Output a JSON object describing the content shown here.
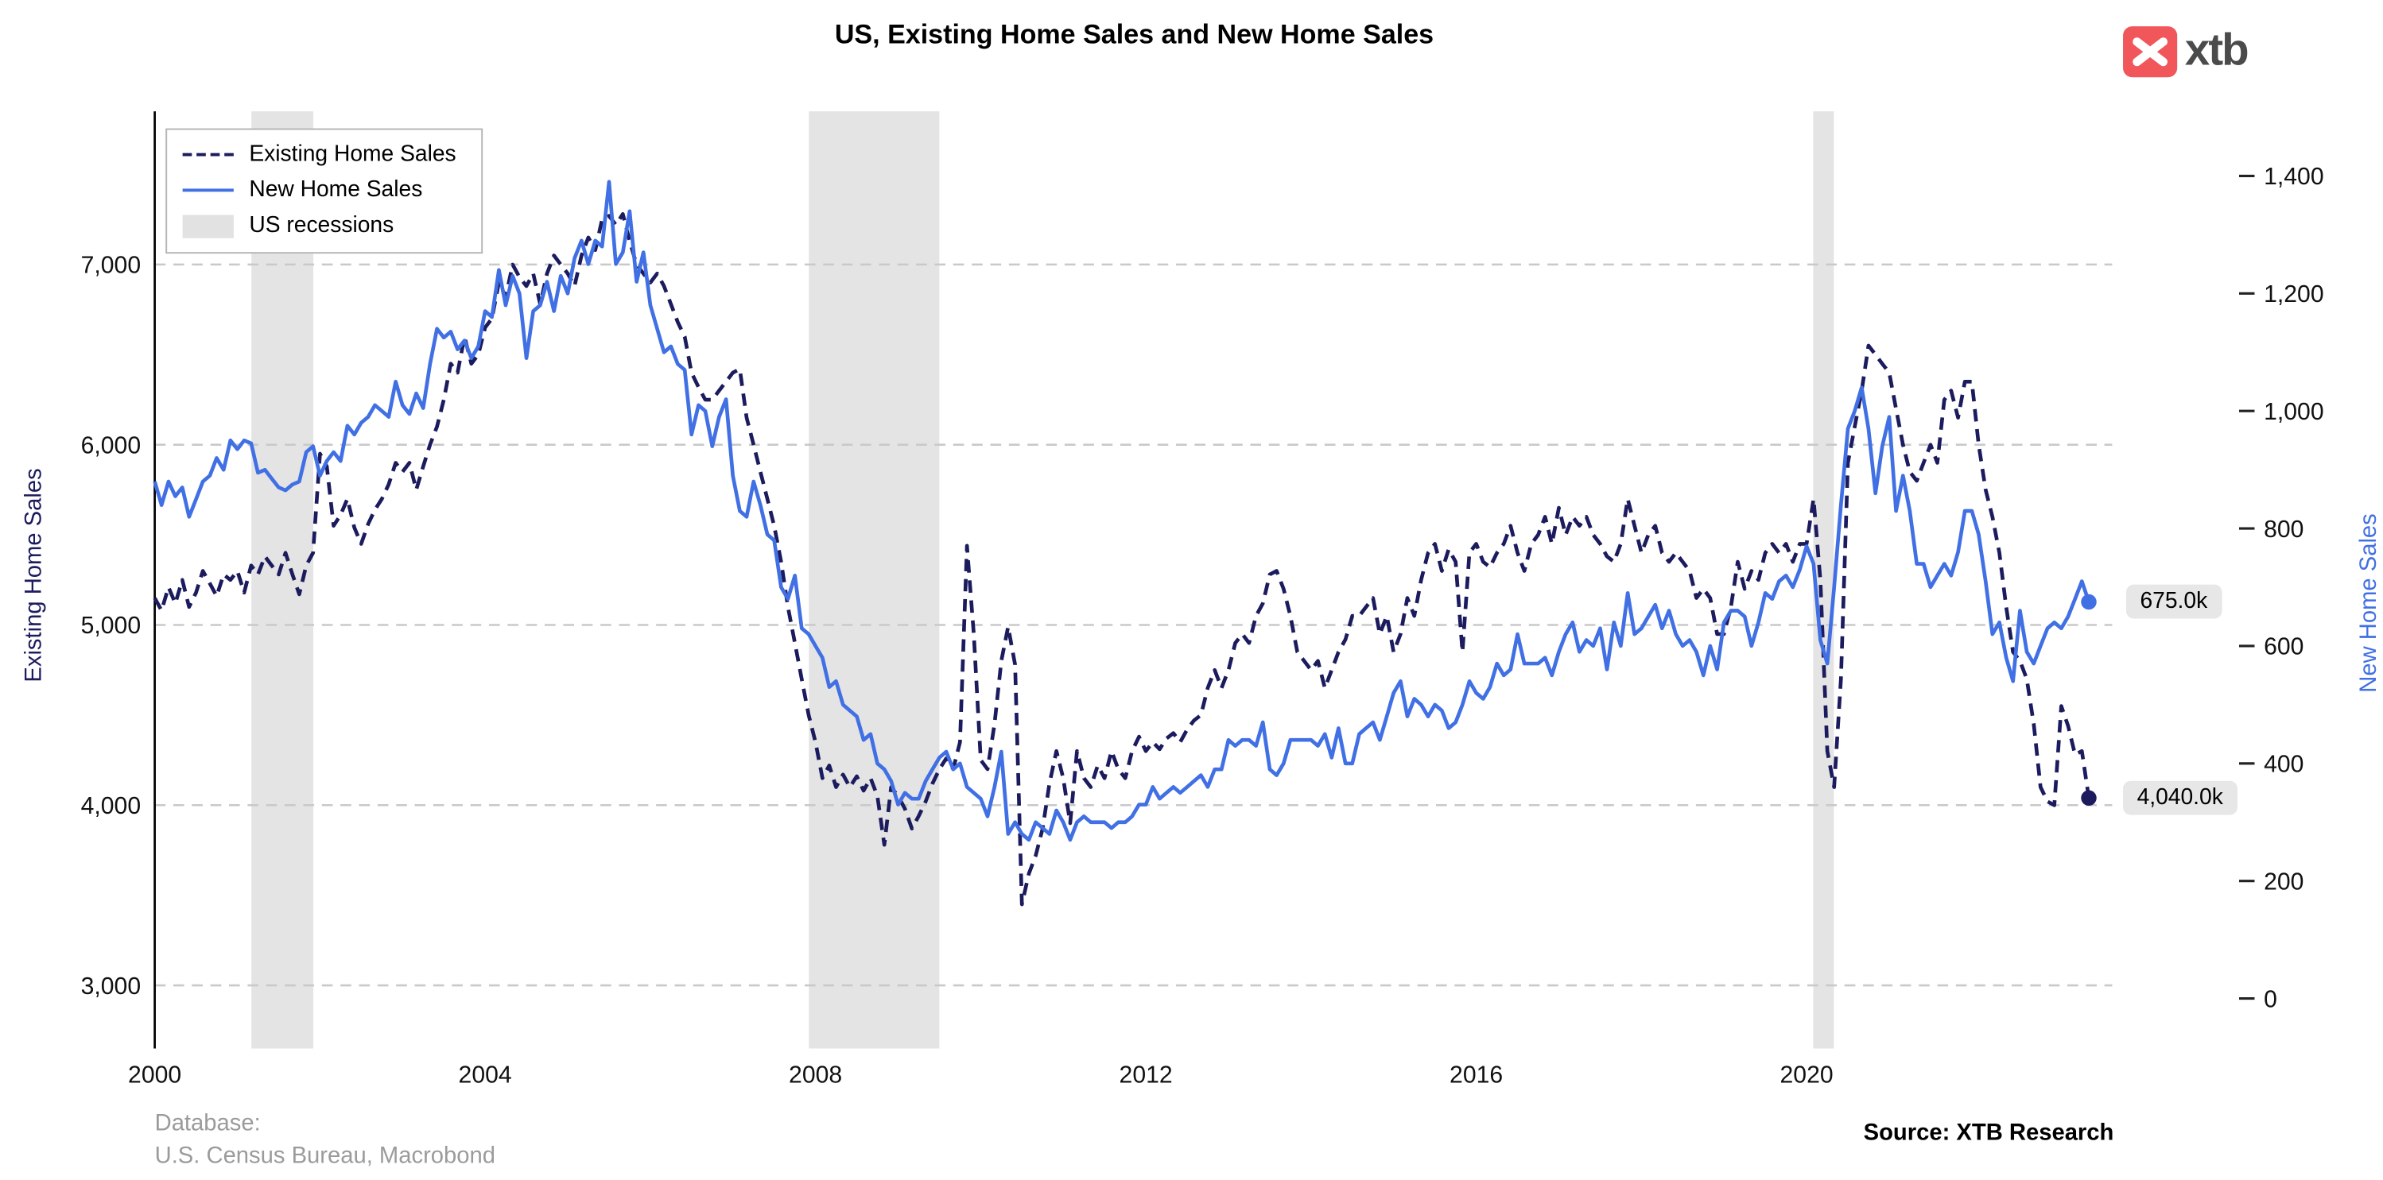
{
  "title": "US, Existing Home Sales and New Home Sales",
  "logo": {
    "text": "xtb"
  },
  "legend": [
    {
      "label": "Existing Home Sales"
    },
    {
      "label": "New Home Sales"
    },
    {
      "label": "US recessions"
    }
  ],
  "left_axis": {
    "label": "Existing Home Sales",
    "color": "#1b1b5e"
  },
  "right_axis": {
    "label": "New Home Sales",
    "color": "#4170e4"
  },
  "end_labels": {
    "new_home_sales": "675.0k",
    "existing_home_sales": "4,040.0k"
  },
  "footer": {
    "database_label": "Database:",
    "database_value": "U.S. Census Bureau, Macrobond",
    "source": "Source: XTB Research"
  },
  "chart_data": {
    "type": "line",
    "title": "US, Existing Home Sales and New Home Sales",
    "x_start": 2000.0,
    "x_step_years": 0.0833333,
    "x_range": [
      2000,
      2023.7
    ],
    "left_ylim": [
      2650,
      7850
    ],
    "right_ylim": [
      -85,
      1510
    ],
    "grid": "horizontal-dashed",
    "legend_position": "top-left",
    "x_ticks": {
      "values": [
        2000,
        2004,
        2008,
        2012,
        2016,
        2020
      ],
      "labels": [
        "2000",
        "2004",
        "2008",
        "2012",
        "2016",
        "2020"
      ]
    },
    "left_ticks": {
      "values": [
        3000,
        4000,
        5000,
        6000,
        7000
      ],
      "labels": [
        "3,000",
        "4,000",
        "5,000",
        "6,000",
        "7,000"
      ]
    },
    "right_ticks": {
      "values": [
        0,
        200,
        400,
        600,
        800,
        1000,
        1200,
        1400
      ],
      "labels": [
        "0",
        "200",
        "400",
        "600",
        "800",
        "1,000",
        "1,200",
        "1,400"
      ]
    },
    "recessions": [
      [
        2001.17,
        2001.92
      ],
      [
        2007.92,
        2009.5
      ],
      [
        2020.08,
        2020.33
      ]
    ],
    "recession_color": "#e4e4e4",
    "series": [
      {
        "name": "Existing Home Sales",
        "axis": "left",
        "color": "#1b1b5e",
        "dash": true,
        "last_value_label": "4,040.0k",
        "values": [
          5150,
          5080,
          5210,
          5120,
          5250,
          5100,
          5180,
          5300,
          5230,
          5160,
          5280,
          5250,
          5300,
          5180,
          5330,
          5280,
          5380,
          5330,
          5280,
          5400,
          5280,
          5170,
          5330,
          5400,
          5950,
          5880,
          5550,
          5610,
          5700,
          5540,
          5450,
          5560,
          5640,
          5700,
          5780,
          5900,
          5850,
          5900,
          5750,
          5880,
          6000,
          6100,
          6250,
          6450,
          6400,
          6600,
          6450,
          6500,
          6650,
          6700,
          6900,
          6820,
          7000,
          6930,
          6880,
          6950,
          6780,
          6950,
          7050,
          7000,
          6950,
          6880,
          7050,
          7150,
          7080,
          7250,
          7270,
          7220,
          7280,
          7130,
          7000,
          6950,
          6900,
          6950,
          6880,
          6780,
          6680,
          6600,
          6400,
          6320,
          6250,
          6250,
          6300,
          6350,
          6400,
          6420,
          6150,
          6000,
          5850,
          5700,
          5550,
          5350,
          5100,
          4900,
          4700,
          4500,
          4350,
          4150,
          4220,
          4100,
          4170,
          4100,
          4160,
          4080,
          4150,
          4050,
          3780,
          4100,
          4050,
          3980,
          3870,
          3940,
          4020,
          4120,
          4200,
          4260,
          4200,
          4350,
          5440,
          4950,
          4250,
          4200,
          4450,
          4800,
          4990,
          4780,
          3450,
          3620,
          3720,
          3870,
          4120,
          4300,
          4150,
          3900,
          4300,
          4150,
          4100,
          4220,
          4150,
          4300,
          4200,
          4150,
          4300,
          4380,
          4300,
          4350,
          4310,
          4370,
          4400,
          4350,
          4420,
          4470,
          4500,
          4650,
          4750,
          4650,
          4750,
          4900,
          4950,
          4900,
          5050,
          5120,
          5280,
          5300,
          5200,
          5050,
          4850,
          4800,
          4750,
          4800,
          4650,
          4750,
          4850,
          4920,
          5050,
          5050,
          5100,
          5150,
          4950,
          5050,
          4850,
          4950,
          5150,
          5050,
          5250,
          5400,
          5450,
          5300,
          5420,
          5350,
          4850,
          5400,
          5450,
          5350,
          5320,
          5400,
          5450,
          5550,
          5400,
          5300,
          5450,
          5500,
          5600,
          5450,
          5650,
          5500,
          5600,
          5550,
          5600,
          5500,
          5450,
          5380,
          5350,
          5450,
          5700,
          5550,
          5400,
          5500,
          5550,
          5400,
          5350,
          5400,
          5350,
          5300,
          5150,
          5200,
          5150,
          4950,
          4950,
          5100,
          5350,
          5200,
          5300,
          5250,
          5400,
          5450,
          5400,
          5450,
          5350,
          5450,
          5450,
          5700,
          5250,
          4300,
          4100,
          4700,
          5900,
          6100,
          6300,
          6550,
          6500,
          6450,
          6400,
          6200,
          6000,
          5850,
          5800,
          5900,
          6000,
          5900,
          6250,
          6300,
          6150,
          6350,
          6350,
          6000,
          5750,
          5600,
          5400,
          5100,
          4850,
          4800,
          4700,
          4450,
          4100,
          4020,
          4000,
          4550,
          4440,
          4280,
          4300,
          4040
        ]
      },
      {
        "name": "New Home Sales",
        "axis": "right",
        "color": "#4170e4",
        "dash": false,
        "last_value_label": "675.0k",
        "values": [
          880,
          840,
          880,
          855,
          870,
          820,
          850,
          880,
          890,
          920,
          900,
          950,
          935,
          950,
          945,
          895,
          900,
          885,
          870,
          865,
          875,
          880,
          930,
          940,
          890,
          915,
          930,
          915,
          975,
          960,
          980,
          990,
          1010,
          1000,
          990,
          1050,
          1010,
          995,
          1030,
          1005,
          1080,
          1140,
          1125,
          1135,
          1105,
          1120,
          1090,
          1110,
          1170,
          1160,
          1240,
          1180,
          1230,
          1200,
          1090,
          1170,
          1180,
          1220,
          1170,
          1230,
          1200,
          1260,
          1290,
          1250,
          1290,
          1280,
          1390,
          1250,
          1270,
          1340,
          1220,
          1270,
          1180,
          1140,
          1100,
          1110,
          1080,
          1070,
          960,
          1010,
          1000,
          940,
          990,
          1020,
          890,
          830,
          820,
          880,
          840,
          790,
          780,
          700,
          680,
          720,
          630,
          620,
          600,
          580,
          530,
          540,
          500,
          490,
          480,
          440,
          450,
          400,
          390,
          370,
          330,
          350,
          340,
          340,
          370,
          390,
          410,
          420,
          390,
          400,
          360,
          350,
          340,
          310,
          360,
          420,
          280,
          300,
          280,
          270,
          300,
          290,
          280,
          320,
          300,
          270,
          300,
          310,
          300,
          300,
          300,
          290,
          300,
          300,
          310,
          330,
          330,
          360,
          340,
          350,
          360,
          350,
          360,
          370,
          380,
          360,
          390,
          390,
          440,
          430,
          440,
          440,
          430,
          470,
          390,
          380,
          400,
          440,
          440,
          440,
          440,
          430,
          450,
          410,
          460,
          400,
          400,
          450,
          460,
          470,
          440,
          480,
          520,
          540,
          480,
          510,
          500,
          480,
          500,
          490,
          460,
          470,
          500,
          540,
          520,
          510,
          530,
          570,
          550,
          560,
          620,
          570,
          570,
          570,
          580,
          550,
          590,
          620,
          640,
          590,
          610,
          600,
          630,
          560,
          640,
          600,
          690,
          620,
          630,
          650,
          670,
          630,
          660,
          620,
          600,
          610,
          590,
          550,
          600,
          560,
          640,
          660,
          660,
          650,
          600,
          640,
          690,
          680,
          710,
          720,
          700,
          730,
          770,
          740,
          610,
          570,
          700,
          840,
          970,
          1000,
          1040,
          970,
          860,
          940,
          990,
          830,
          890,
          830,
          740,
          740,
          700,
          720,
          740,
          720,
          760,
          830,
          830,
          790,
          710,
          620,
          640,
          580,
          540,
          660,
          590,
          570,
          600,
          630,
          640,
          630,
          650,
          680,
          710,
          675
        ]
      }
    ]
  }
}
